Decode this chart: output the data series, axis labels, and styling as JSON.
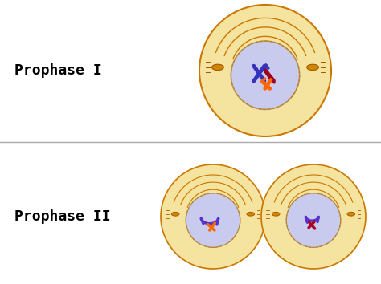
{
  "bg_color": "#ffffff",
  "divider_color": "#aaaaaa",
  "label1": "Prophase I",
  "label2": "Prophase II",
  "label_fontsize": 13,
  "cell_cream": "#f5e4a0",
  "cell_cream_dark": "#e8c870",
  "cell_border": "#cc7700",
  "cell_border_dark": "#aa5500",
  "nucleus_fill": "#c8caee",
  "nucleus_border": "#aa9977",
  "spindle_body_color": "#cc8800",
  "arc_color": "#cc7700"
}
